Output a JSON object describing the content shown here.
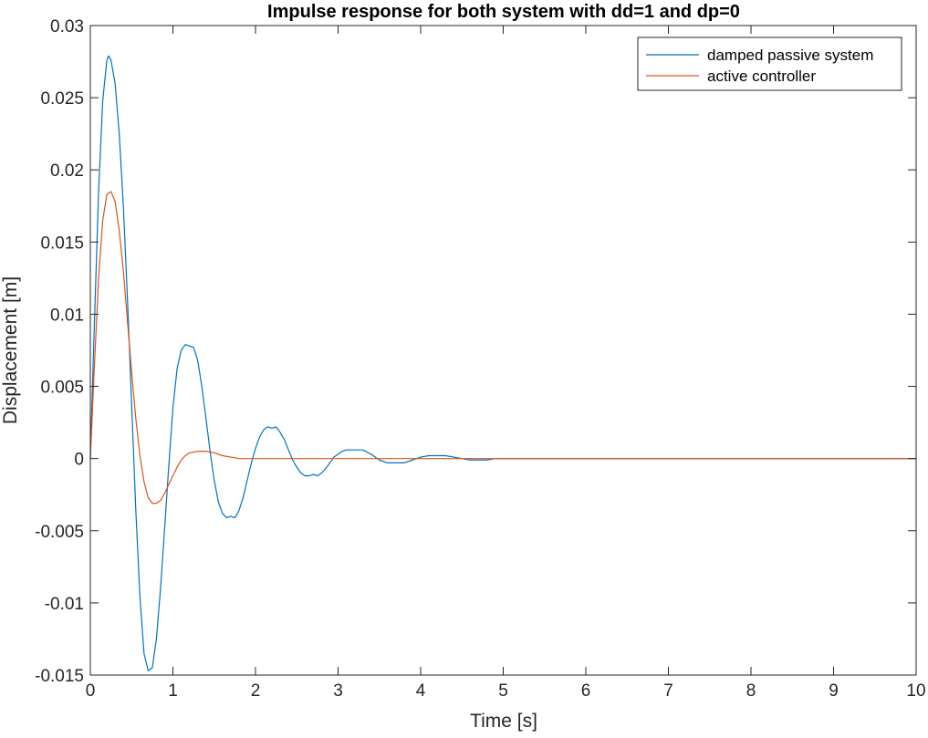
{
  "chart_data": {
    "type": "line",
    "title": "Impulse response for both system with dd=1 and dp=0",
    "xlabel": "Time [s]",
    "ylabel": "Displacement [m]",
    "xlim": [
      0,
      10
    ],
    "ylim": [
      -0.015,
      0.03
    ],
    "xticks": [
      0,
      1,
      2,
      3,
      4,
      5,
      6,
      7,
      8,
      9,
      10
    ],
    "xtick_labels": [
      "0",
      "1",
      "2",
      "3",
      "4",
      "5",
      "6",
      "7",
      "8",
      "9",
      "10"
    ],
    "yticks": [
      -0.015,
      -0.01,
      -0.005,
      0,
      0.005,
      0.01,
      0.015,
      0.02,
      0.025,
      0.03
    ],
    "ytick_labels": [
      "-0.015",
      "-0.01",
      "-0.005",
      "0",
      "0.005",
      "0.01",
      "0.015",
      "0.02",
      "0.025",
      "0.03"
    ],
    "grid": false,
    "legend_position": "top-right",
    "series": [
      {
        "name": "damped passive system",
        "color": "#0072BD",
        "points": [
          [
            0,
            0
          ],
          [
            0.05,
            0.0095
          ],
          [
            0.1,
            0.0185
          ],
          [
            0.15,
            0.0248
          ],
          [
            0.2,
            0.0276
          ],
          [
            0.22,
            0.0279
          ],
          [
            0.25,
            0.0276
          ],
          [
            0.3,
            0.026
          ],
          [
            0.35,
            0.0225
          ],
          [
            0.4,
            0.0175
          ],
          [
            0.45,
            0.011
          ],
          [
            0.5,
            0.0038
          ],
          [
            0.55,
            -0.0035
          ],
          [
            0.6,
            -0.0095
          ],
          [
            0.65,
            -0.0135
          ],
          [
            0.7,
            -0.0147
          ],
          [
            0.75,
            -0.0145
          ],
          [
            0.8,
            -0.0125
          ],
          [
            0.85,
            -0.009
          ],
          [
            0.9,
            -0.0048
          ],
          [
            0.95,
            -0.0005
          ],
          [
            1.0,
            0.0035
          ],
          [
            1.05,
            0.0062
          ],
          [
            1.1,
            0.0075
          ],
          [
            1.15,
            0.0079
          ],
          [
            1.2,
            0.0078
          ],
          [
            1.25,
            0.0077
          ],
          [
            1.3,
            0.0068
          ],
          [
            1.35,
            0.005
          ],
          [
            1.4,
            0.0028
          ],
          [
            1.45,
            0.0005
          ],
          [
            1.5,
            -0.0015
          ],
          [
            1.55,
            -0.003
          ],
          [
            1.6,
            -0.0038
          ],
          [
            1.65,
            -0.0041
          ],
          [
            1.7,
            -0.004
          ],
          [
            1.75,
            -0.0041
          ],
          [
            1.8,
            -0.0036
          ],
          [
            1.85,
            -0.0027
          ],
          [
            1.9,
            -0.0015
          ],
          [
            1.95,
            -0.0003
          ],
          [
            2.0,
            0.0007
          ],
          [
            2.05,
            0.0015
          ],
          [
            2.1,
            0.002
          ],
          [
            2.15,
            0.0022
          ],
          [
            2.2,
            0.0021
          ],
          [
            2.25,
            0.0022
          ],
          [
            2.3,
            0.0018
          ],
          [
            2.35,
            0.0013
          ],
          [
            2.4,
            0.0006
          ],
          [
            2.45,
            -0.0001
          ],
          [
            2.5,
            -0.0006
          ],
          [
            2.55,
            -0.001
          ],
          [
            2.6,
            -0.0012
          ],
          [
            2.65,
            -0.0012
          ],
          [
            2.7,
            -0.0011
          ],
          [
            2.75,
            -0.0012
          ],
          [
            2.8,
            -0.001
          ],
          [
            2.85,
            -0.0007
          ],
          [
            2.9,
            -0.0003
          ],
          [
            2.95,
            0.0001
          ],
          [
            3.0,
            0.0003
          ],
          [
            3.05,
            0.0005
          ],
          [
            3.1,
            0.0006
          ],
          [
            3.15,
            0.0006
          ],
          [
            3.2,
            0.0006
          ],
          [
            3.3,
            0.0006
          ],
          [
            3.4,
            0.0003
          ],
          [
            3.5,
            -0.0001
          ],
          [
            3.6,
            -0.0003
          ],
          [
            3.7,
            -0.0003
          ],
          [
            3.8,
            -0.0003
          ],
          [
            3.9,
            -0.0001
          ],
          [
            4.0,
            0.0001
          ],
          [
            4.1,
            0.0002
          ],
          [
            4.2,
            0.0002
          ],
          [
            4.3,
            0.0002
          ],
          [
            4.4,
            0.0001
          ],
          [
            4.5,
            0.0
          ],
          [
            4.6,
            -0.0001
          ],
          [
            4.7,
            -0.0001
          ],
          [
            4.8,
            -0.0001
          ],
          [
            4.9,
            0.0
          ],
          [
            5.0,
            0.0
          ],
          [
            5.1,
            0.0
          ],
          [
            5.2,
            0.0
          ],
          [
            5.3,
            0.0
          ],
          [
            5.5,
            0.0
          ],
          [
            6.0,
            0.0
          ],
          [
            7.0,
            0.0
          ],
          [
            8.0,
            0.0
          ],
          [
            9.0,
            0.0
          ],
          [
            10.0,
            0.0
          ]
        ]
      },
      {
        "name": "active controller",
        "color": "#D95319",
        "points": [
          [
            0,
            0
          ],
          [
            0.05,
            0.0065
          ],
          [
            0.1,
            0.0125
          ],
          [
            0.15,
            0.0165
          ],
          [
            0.2,
            0.0183
          ],
          [
            0.25,
            0.0185
          ],
          [
            0.3,
            0.0178
          ],
          [
            0.35,
            0.0158
          ],
          [
            0.4,
            0.013
          ],
          [
            0.45,
            0.0095
          ],
          [
            0.5,
            0.006
          ],
          [
            0.55,
            0.0028
          ],
          [
            0.6,
            0.0002
          ],
          [
            0.65,
            -0.0016
          ],
          [
            0.7,
            -0.0027
          ],
          [
            0.75,
            -0.0031
          ],
          [
            0.8,
            -0.0031
          ],
          [
            0.85,
            -0.0029
          ],
          [
            0.9,
            -0.0024
          ],
          [
            0.95,
            -0.0018
          ],
          [
            1.0,
            -0.0012
          ],
          [
            1.05,
            -0.0006
          ],
          [
            1.1,
            -0.0001
          ],
          [
            1.15,
            0.0002
          ],
          [
            1.2,
            0.0004
          ],
          [
            1.3,
            0.0005
          ],
          [
            1.4,
            0.0005
          ],
          [
            1.5,
            0.0004
          ],
          [
            1.6,
            0.0002
          ],
          [
            1.7,
            0.0001
          ],
          [
            1.8,
            0.0
          ],
          [
            1.9,
            0.0
          ],
          [
            2.0,
            0.0
          ],
          [
            2.2,
            0.0
          ],
          [
            2.5,
            0.0
          ],
          [
            3.0,
            0.0
          ],
          [
            4.0,
            0.0
          ],
          [
            5.0,
            0.0
          ],
          [
            6.0,
            0.0
          ],
          [
            7.0,
            0.0
          ],
          [
            8.0,
            0.0
          ],
          [
            9.0,
            0.0
          ],
          [
            10.0,
            0.0
          ]
        ]
      }
    ]
  }
}
